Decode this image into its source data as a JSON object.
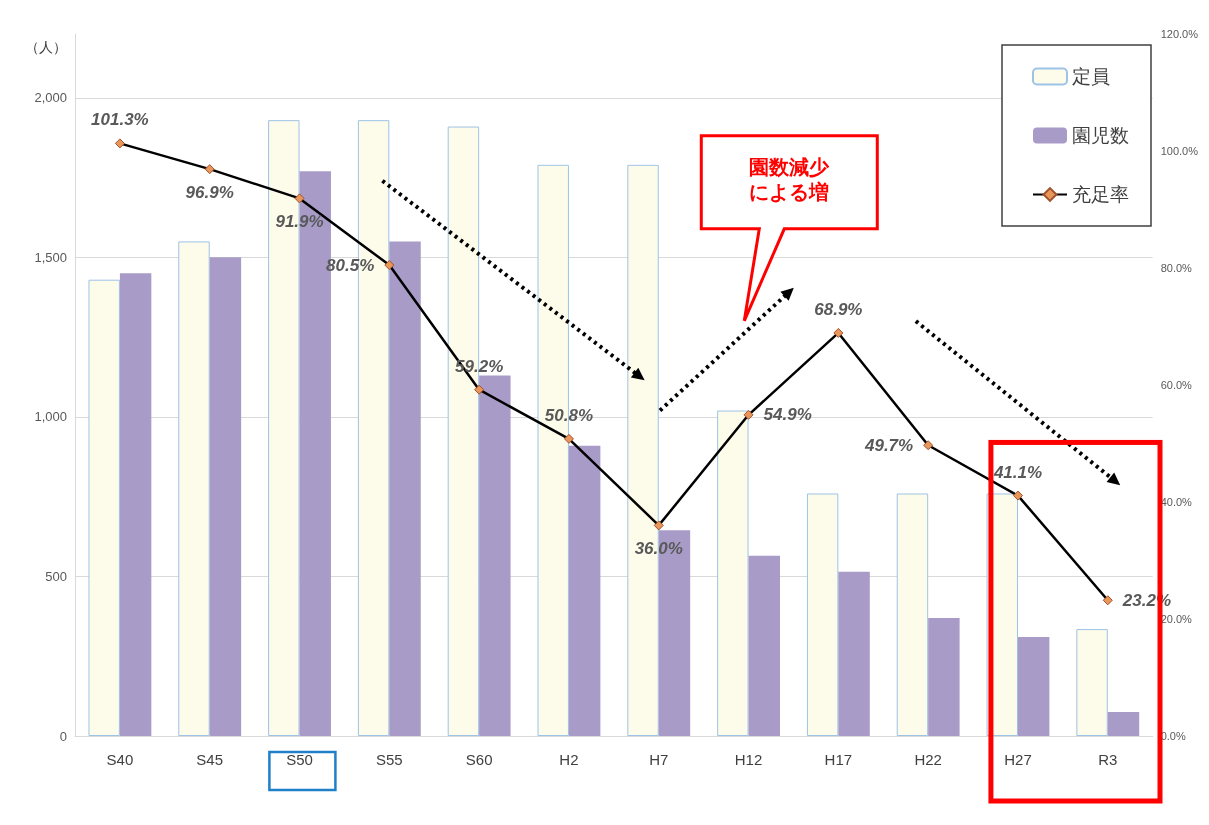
{
  "chart_data": {
    "type": "bar",
    "ylabel": "（人）",
    "categories": [
      "S40",
      "S45",
      "S50",
      "S55",
      "S60",
      "H2",
      "H7",
      "H12",
      "H17",
      "H22",
      "H27",
      "R3"
    ],
    "series": [
      {
        "name": "定員",
        "color": "#fdfbea",
        "values": [
          1430,
          1550,
          1930,
          1930,
          1910,
          1790,
          1790,
          1020,
          760,
          760,
          760,
          335
        ]
      },
      {
        "name": "園児数",
        "color": "#a89bc8",
        "values": [
          1450,
          1500,
          1770,
          1550,
          1130,
          910,
          645,
          565,
          515,
          370,
          310,
          75
        ]
      },
      {
        "name": "充足率",
        "type": "line",
        "axis": "y2",
        "color": "#000000",
        "marker": "diamond",
        "values": [
          101.3,
          96.9,
          91.9,
          80.5,
          59.2,
          50.8,
          36.0,
          54.9,
          68.9,
          49.7,
          41.1,
          23.2
        ],
        "value_labels": [
          "101.3%",
          "96.9%",
          "91.9%",
          "80.5%",
          "59.2%",
          "50.8%",
          "36.0%",
          "54.9%",
          "68.9%",
          "49.7%",
          "41.1%",
          "23.2%"
        ]
      }
    ],
    "ylim": [
      0,
      2200
    ],
    "yticks": [
      0,
      {
        "value": 500,
        "label": "500"
      },
      {
        "value": 1000,
        "label": "1,000"
      },
      {
        "value": 1500,
        "label": "1,500"
      },
      {
        "value": 2000,
        "label": "2,000"
      }
    ],
    "y2lim": [
      0,
      120
    ],
    "y2ticks": [
      {
        "value": 0,
        "label": "0.0%"
      },
      {
        "value": 20,
        "label": "20.0%"
      },
      {
        "value": 40,
        "label": "40.0%"
      },
      {
        "value": 60,
        "label": "60.0%"
      },
      {
        "value": 80,
        "label": "80.0%"
      },
      {
        "value": 100,
        "label": "100.0%"
      },
      {
        "value": 120,
        "label": "120.0%"
      }
    ],
    "grid": "y",
    "legend": "top right",
    "annotations": [
      "園数減少による増"
    ]
  }
}
